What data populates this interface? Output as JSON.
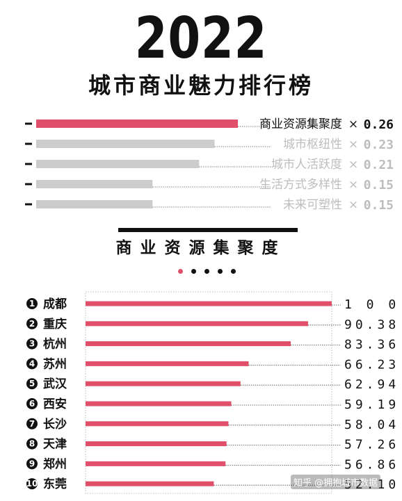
{
  "header": {
    "year": "2022",
    "subtitle": "城市商业魅力排行榜"
  },
  "weights": [
    {
      "label": "商业资源集聚度",
      "times": "×",
      "value": "0.26",
      "weight": 0.26,
      "active": true
    },
    {
      "label": "城市枢纽性",
      "times": "×",
      "value": "0.23",
      "weight": 0.23,
      "active": false
    },
    {
      "label": "城市人活跃度",
      "times": "×",
      "value": "0.21",
      "weight": 0.21,
      "active": false
    },
    {
      "label": "生活方式多样性",
      "times": "×",
      "value": "0.15",
      "weight": 0.15,
      "active": false
    },
    {
      "label": "未来可塑性",
      "times": "×",
      "value": "0.15",
      "weight": 0.15,
      "active": false
    }
  ],
  "section": {
    "title": "商业资源集聚度",
    "pager_total": 5,
    "pager_active": 1
  },
  "chart_data": {
    "type": "bar",
    "orientation": "horizontal",
    "title": "商业资源集聚度",
    "categories": [
      "成都",
      "重庆",
      "杭州",
      "苏州",
      "武汉",
      "西安",
      "长沙",
      "天津",
      "郑州",
      "东莞"
    ],
    "ranks": [
      "1",
      "2",
      "3",
      "4",
      "5",
      "6",
      "7",
      "8",
      "9",
      "10"
    ],
    "values": [
      100,
      90.38,
      83.36,
      66.23,
      62.94,
      59.19,
      58.04,
      57.26,
      56.86,
      52.1
    ],
    "value_labels": [
      "1 0 0",
      "90.38",
      "83.36",
      "66.23",
      "62.94",
      "59.19",
      "58.04",
      "57.26",
      "56.86",
      "52.10"
    ],
    "xlim": [
      0,
      100
    ],
    "grid": false,
    "colors": {
      "bar": "#e0506a",
      "weight_active": "#e0506a",
      "weight_inactive": "#cccccc",
      "inactive_text": "#bdbdbd"
    }
  },
  "watermark": "知乎 @拥抱城市数据"
}
